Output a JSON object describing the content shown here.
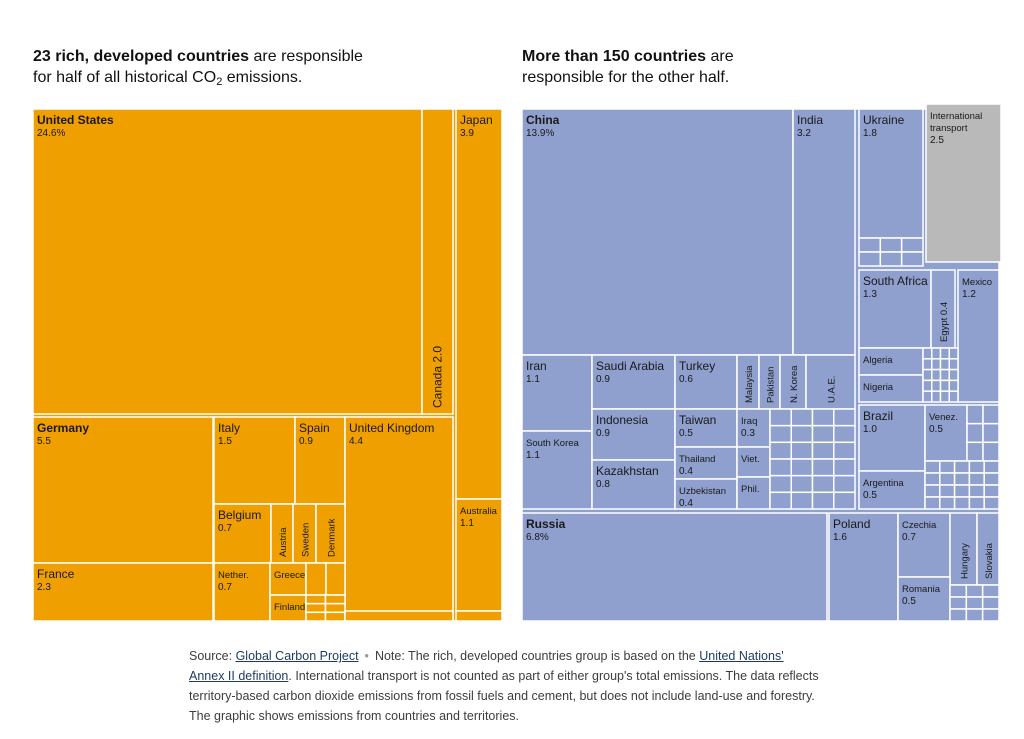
{
  "headings": {
    "left": {
      "bold": "23 rich, developed countries",
      "line1_rest": " are responsible",
      "line2_pre": "for half of all historical CO",
      "sub": "2",
      "line2_post": " emissions."
    },
    "right": {
      "bold": "More than 150 countries",
      "line1_rest": " are",
      "line2": "responsible for the other half."
    }
  },
  "colors": {
    "rich": "#ef9f00",
    "rich_light": "#f5b830",
    "other": "#8f9fce",
    "international": "#b9b9b9",
    "border": "#ffffff"
  },
  "chart_data": {
    "type": "treemap",
    "unit": "% of historical CO2 emissions",
    "groups": [
      {
        "name": "23 rich, developed countries",
        "items": [
          {
            "name": "United States",
            "value": "24.6%"
          },
          {
            "name": "Canada",
            "value": "2.0"
          },
          {
            "name": "Japan",
            "value": "3.9"
          },
          {
            "name": "Australia",
            "value": "1.1"
          },
          {
            "name": "Germany",
            "value": "5.5"
          },
          {
            "name": "France",
            "value": "2.3"
          },
          {
            "name": "Italy",
            "value": "1.5"
          },
          {
            "name": "Spain",
            "value": "0.9"
          },
          {
            "name": "United Kingdom",
            "value": "4.4"
          },
          {
            "name": "Belgium",
            "value": "0.7"
          },
          {
            "name": "Austria",
            "value": ""
          },
          {
            "name": "Sweden",
            "value": ""
          },
          {
            "name": "Denmark",
            "value": ""
          },
          {
            "name": "Nether.",
            "value": "0.7"
          },
          {
            "name": "Greece",
            "value": ""
          },
          {
            "name": "Finland",
            "value": ""
          }
        ]
      },
      {
        "name": "More than 150 countries",
        "items": [
          {
            "name": "China",
            "value": "13.9%"
          },
          {
            "name": "India",
            "value": "3.2"
          },
          {
            "name": "Ukraine",
            "value": "1.8"
          },
          {
            "name": "International transport",
            "value": "2.5"
          },
          {
            "name": "South Africa",
            "value": "1.3"
          },
          {
            "name": "Egypt",
            "value": "0.4"
          },
          {
            "name": "Mexico",
            "value": "1.2"
          },
          {
            "name": "Algeria",
            "value": ""
          },
          {
            "name": "Nigeria",
            "value": ""
          },
          {
            "name": "Iran",
            "value": "1.1"
          },
          {
            "name": "Saudi Arabia",
            "value": "0.9"
          },
          {
            "name": "Turkey",
            "value": "0.6"
          },
          {
            "name": "Malaysia",
            "value": ""
          },
          {
            "name": "Pakistan",
            "value": ""
          },
          {
            "name": "N. Korea",
            "value": ""
          },
          {
            "name": "U.A.E.",
            "value": ""
          },
          {
            "name": "South Korea",
            "value": "1.1"
          },
          {
            "name": "Indonesia",
            "value": "0.9"
          },
          {
            "name": "Taiwan",
            "value": "0.5"
          },
          {
            "name": "Iraq",
            "value": "0.3"
          },
          {
            "name": "Kazakhstan",
            "value": "0.8"
          },
          {
            "name": "Thailand",
            "value": "0.4"
          },
          {
            "name": "Viet.",
            "value": ""
          },
          {
            "name": "Uzbekistan",
            "value": "0.4"
          },
          {
            "name": "Phil.",
            "value": ""
          },
          {
            "name": "Brazil",
            "value": "1.0"
          },
          {
            "name": "Venez.",
            "value": "0.5"
          },
          {
            "name": "Argentina",
            "value": "0.5"
          },
          {
            "name": "Russia",
            "value": "6.8%"
          },
          {
            "name": "Poland",
            "value": "1.6"
          },
          {
            "name": "Czechia",
            "value": "0.7"
          },
          {
            "name": "Hungary",
            "value": ""
          },
          {
            "name": "Slovakia",
            "value": ""
          },
          {
            "name": "Romania",
            "value": "0.5"
          }
        ]
      }
    ]
  },
  "footer": {
    "source_label": "Source: ",
    "source_link": "Global Carbon Project",
    "separator": "•",
    "note_pre": "Note: The rich, developed countries group is based on the ",
    "note_link1": "United Nations'",
    "note_link2": "Annex II definition",
    "note_post": ". International transport is not counted as part of either group's total emissions. The data reflects territory-based carbon dioxide emissions from fossil fuels and cement, but does not include land-use and forestry. The graphic shows emissions from countries and territories."
  }
}
